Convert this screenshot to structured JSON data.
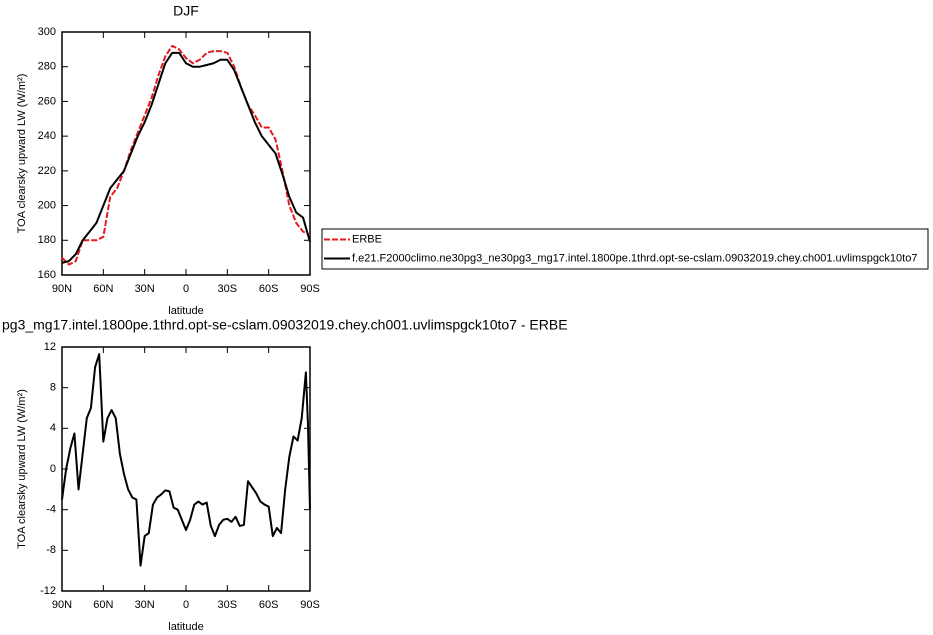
{
  "chart_data": [
    {
      "type": "line",
      "title": "DJF",
      "x_label": "latitude",
      "y_label": "TOA clearsky upward LW (W/m²)",
      "xlim": [
        90,
        -90
      ],
      "ylim": [
        160,
        300
      ],
      "xticks": [
        {
          "value": 90,
          "label": "90N"
        },
        {
          "value": 60,
          "label": "60N"
        },
        {
          "value": 30,
          "label": "30N"
        },
        0,
        {
          "value": -30,
          "label": "30S"
        },
        {
          "value": -60,
          "label": "60S"
        },
        {
          "value": -90,
          "label": "90S"
        }
      ],
      "yticks": [
        160,
        180,
        200,
        220,
        240,
        260,
        280,
        300
      ],
      "legend": "right",
      "x": [
        90,
        85,
        80,
        75,
        70,
        65,
        60,
        55,
        50,
        45,
        40,
        35,
        30,
        25,
        20,
        15,
        10,
        5,
        0,
        -5,
        -10,
        -15,
        -20,
        -25,
        -30,
        -35,
        -40,
        -45,
        -50,
        -55,
        -60,
        -65,
        -70,
        -75,
        -80,
        -85,
        -90
      ],
      "series": [
        {
          "name": "ERBE",
          "color": "#e41a1c",
          "style": "dashed",
          "values": [
            170,
            166,
            168,
            180,
            180,
            180,
            182,
            205,
            210,
            220,
            232,
            242,
            252,
            262,
            275,
            286,
            292,
            290,
            285,
            282,
            284,
            288,
            289,
            289,
            288,
            280,
            268,
            258,
            252,
            245,
            245,
            238,
            220,
            200,
            190,
            185,
            183
          ]
        },
        {
          "name": "f.e21.F2000climo.ne30pg3_ne30pg3_mg17.intel.1800pe.1thrd.opt-se-cslam.09032019.chey.ch001.uvlimspgck10to7",
          "color": "#000000",
          "style": "solid",
          "values": [
            167,
            168,
            172,
            180,
            185,
            190,
            200,
            210,
            215,
            220,
            230,
            240,
            248,
            258,
            270,
            282,
            288,
            288,
            282,
            280,
            280,
            281,
            282,
            284,
            284,
            278,
            268,
            258,
            248,
            240,
            235,
            230,
            218,
            205,
            196,
            193,
            179
          ]
        }
      ]
    },
    {
      "type": "line",
      "title": "pg3_mg17.intel.1800pe.1thrd.opt-se-cslam.09032019.chey.ch001.uvlimspgck10to7 - ERBE",
      "x_label": "latitude",
      "y_label": "TOA clearsky upward LW (W/m²)",
      "xlim": [
        90,
        -90
      ],
      "ylim": [
        -12,
        12
      ],
      "xticks": [
        {
          "value": 90,
          "label": "90N"
        },
        {
          "value": 60,
          "label": "60N"
        },
        {
          "value": 30,
          "label": "30N"
        },
        0,
        {
          "value": -30,
          "label": "30S"
        },
        {
          "value": -60,
          "label": "60S"
        },
        {
          "value": -90,
          "label": "90S"
        }
      ],
      "yticks": [
        -12,
        -8,
        -4,
        0,
        4,
        8,
        12
      ],
      "x": [
        90,
        87,
        84,
        81,
        78,
        75,
        72,
        69,
        66,
        63,
        60,
        57,
        54,
        51,
        48,
        45,
        42,
        39,
        36,
        33,
        30,
        27,
        24,
        21,
        18,
        15,
        12,
        9,
        6,
        3,
        0,
        -3,
        -6,
        -9,
        -12,
        -15,
        -18,
        -21,
        -24,
        -27,
        -30,
        -33,
        -36,
        -39,
        -42,
        -45,
        -48,
        -51,
        -54,
        -57,
        -60,
        -63,
        -66,
        -69,
        -72,
        -75,
        -78,
        -81,
        -84,
        -87,
        -88.5,
        -90
      ],
      "series": [
        {
          "color": "#000000",
          "style": "solid",
          "values": [
            -3,
            0,
            2,
            3.5,
            -2,
            1.5,
            5,
            6,
            10,
            11.3,
            2.7,
            5,
            5.8,
            5,
            1.5,
            -0.5,
            -2,
            -2.8,
            -3,
            -9.5,
            -6.6,
            -6.3,
            -3.5,
            -2.8,
            -2.5,
            -2.1,
            -2.2,
            -3.8,
            -4,
            -5,
            -6,
            -5,
            -3.5,
            -3.2,
            -3.5,
            -3.3,
            -5.6,
            -6.6,
            -5.5,
            -5,
            -4.9,
            -5.2,
            -4.7,
            -5.6,
            -5.5,
            -1.2,
            -1.8,
            -2.4,
            -3.2,
            -3.5,
            -3.7,
            -6.6,
            -5.8,
            -6.3,
            -2,
            1.2,
            3.2,
            2.8,
            5,
            9.5,
            4.5,
            -4
          ]
        }
      ]
    }
  ]
}
